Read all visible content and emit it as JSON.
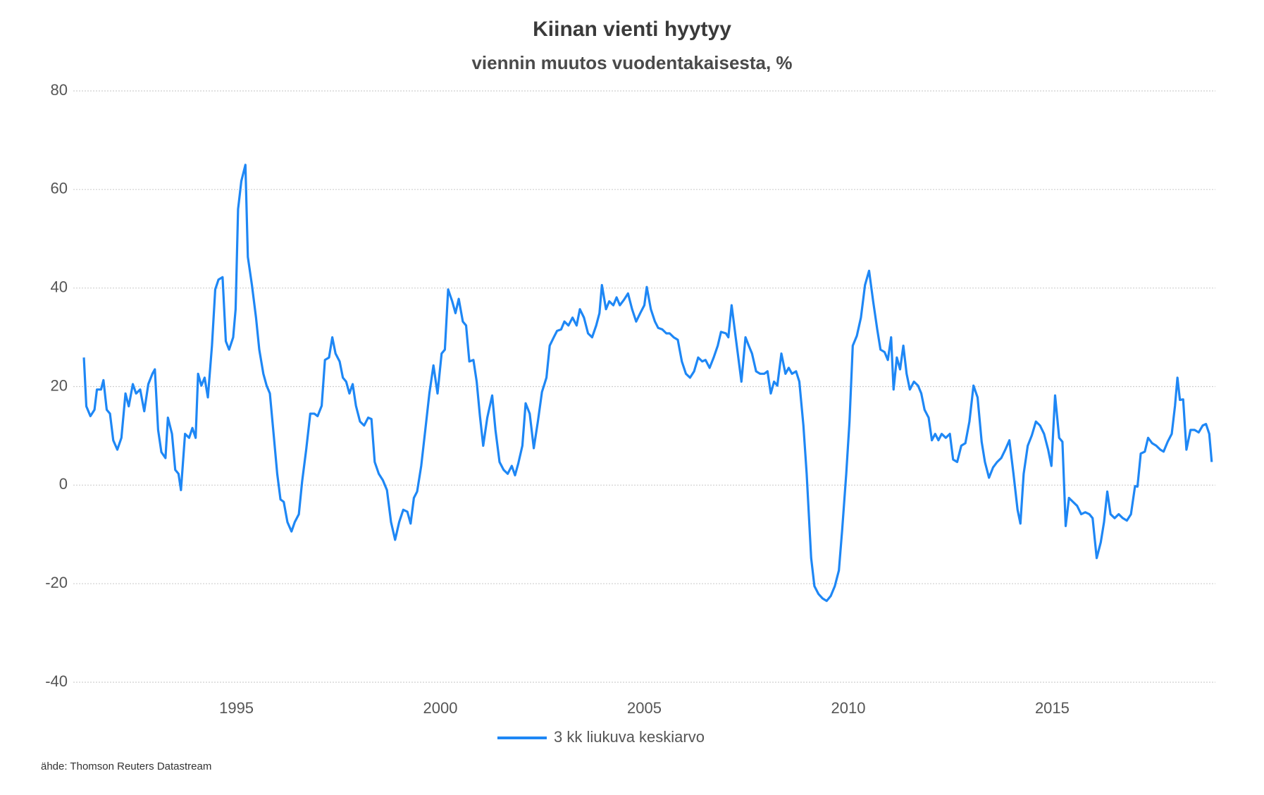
{
  "chart_data": {
    "type": "line",
    "title": "Kiinan vienti hyytyy",
    "subtitle": "viennin muutos vuodentakaisesta, %",
    "source": "ähde: Thomson Reuters Datastream",
    "xlim": [
      1991,
      2019
    ],
    "xticks": [
      1995,
      2000,
      2005,
      2010,
      2015
    ],
    "ylim": [
      -40,
      80
    ],
    "yticks": [
      -40,
      -20,
      0,
      20,
      40,
      60,
      80
    ],
    "grid": true,
    "legend": "bottom",
    "x": [
      1991.26,
      1991.32,
      1991.42,
      1991.52,
      1991.58,
      1991.68,
      1991.74,
      1991.82,
      1991.9,
      1991.98,
      1992.08,
      1992.18,
      1992.28,
      1992.36,
      1992.46,
      1992.54,
      1992.64,
      1992.74,
      1992.84,
      1992.94,
      1993.0,
      1993.08,
      1993.16,
      1993.26,
      1993.32,
      1993.42,
      1993.5,
      1993.58,
      1993.64,
      1993.74,
      1993.84,
      1993.92,
      1994.0,
      1994.06,
      1994.14,
      1994.22,
      1994.3,
      1994.4,
      1994.48,
      1994.56,
      1994.66,
      1994.74,
      1994.82,
      1994.92,
      1994.98,
      1995.04,
      1995.12,
      1995.22,
      1995.28,
      1995.38,
      1995.48,
      1995.56,
      1995.66,
      1995.74,
      1995.82,
      1995.92,
      1996.0,
      1996.08,
      1996.16,
      1996.25,
      1996.35,
      1996.43,
      1996.53,
      1996.61,
      1996.71,
      1996.81,
      1996.91,
      1996.99,
      1997.09,
      1997.17,
      1997.27,
      1997.35,
      1997.43,
      1997.53,
      1997.61,
      1997.69,
      1997.77,
      1997.85,
      1997.93,
      1998.03,
      1998.13,
      1998.23,
      1998.31,
      1998.39,
      1998.49,
      1998.59,
      1998.69,
      1998.79,
      1998.89,
      1998.99,
      1999.09,
      1999.19,
      1999.27,
      1999.35,
      1999.43,
      1999.53,
      1999.63,
      1999.73,
      1999.83,
      1999.93,
      2000.03,
      2000.11,
      2000.19,
      2000.29,
      2000.37,
      2000.45,
      2000.55,
      2000.63,
      2000.71,
      2000.81,
      2000.89,
      2000.97,
      2001.05,
      2001.15,
      2001.27,
      2001.35,
      2001.45,
      2001.55,
      2001.65,
      2001.75,
      2001.83,
      2001.91,
      2002.01,
      2002.09,
      2002.19,
      2002.29,
      2002.39,
      2002.49,
      2002.6,
      2002.68,
      2002.78,
      2002.86,
      2002.96,
      2003.04,
      2003.14,
      2003.24,
      2003.34,
      2003.42,
      2003.52,
      2003.62,
      2003.72,
      2003.82,
      2003.9,
      2003.96,
      2004.06,
      2004.14,
      2004.24,
      2004.32,
      2004.4,
      2004.5,
      2004.6,
      2004.7,
      2004.8,
      2004.9,
      2005.0,
      2005.06,
      2005.16,
      2005.26,
      2005.34,
      2005.44,
      2005.54,
      2005.62,
      2005.72,
      2005.82,
      2005.92,
      2006.02,
      2006.12,
      2006.22,
      2006.32,
      2006.42,
      2006.5,
      2006.6,
      2006.7,
      2006.8,
      2006.88,
      2007.0,
      2007.06,
      2007.14,
      2007.24,
      2007.38,
      2007.48,
      2007.56,
      2007.64,
      2007.74,
      2007.84,
      2007.94,
      2008.02,
      2008.1,
      2008.18,
      2008.26,
      2008.36,
      2008.46,
      2008.54,
      2008.62,
      2008.72,
      2008.8,
      2008.9,
      2008.98,
      2009.09,
      2009.17,
      2009.27,
      2009.37,
      2009.47,
      2009.57,
      2009.67,
      2009.77,
      2009.85,
      2009.95,
      2010.03,
      2010.11,
      2010.21,
      2010.31,
      2010.41,
      2010.51,
      2010.61,
      2010.71,
      2010.79,
      2010.89,
      2010.97,
      2011.05,
      2011.11,
      2011.19,
      2011.27,
      2011.35,
      2011.43,
      2011.51,
      2011.61,
      2011.71,
      2011.79,
      2011.87,
      2011.97,
      2012.05,
      2012.13,
      2012.21,
      2012.29,
      2012.39,
      2012.49,
      2012.57,
      2012.67,
      2012.77,
      2012.87,
      2012.97,
      2013.07,
      2013.17,
      2013.27,
      2013.35,
      2013.45,
      2013.55,
      2013.65,
      2013.75,
      2013.85,
      2013.95,
      2014.05,
      2014.15,
      2014.22,
      2014.3,
      2014.4,
      2014.5,
      2014.6,
      2014.7,
      2014.8,
      2014.9,
      2014.98,
      2015.07,
      2015.17,
      2015.25,
      2015.33,
      2015.41,
      2015.51,
      2015.61,
      2015.71,
      2015.81,
      2015.91,
      2015.99,
      2016.09,
      2016.19,
      2016.27,
      2016.35,
      2016.43,
      2016.53,
      2016.63,
      2016.73,
      2016.83,
      2016.93,
      2017.03,
      2017.09,
      2017.17,
      2017.27,
      2017.35,
      2017.45,
      2017.55,
      2017.65,
      2017.73,
      2017.83,
      2017.93,
      2018.01,
      2018.07,
      2018.13,
      2018.21,
      2018.29,
      2018.39,
      2018.49,
      2018.59,
      2018.69,
      2018.77,
      2018.85,
      2018.91
    ],
    "series": [
      {
        "name": "3 kk liukuva keskiarvo",
        "color": "#1e87f5",
        "values": [
          25.9,
          16,
          14,
          15.3,
          19.4,
          19.4,
          21.3,
          15.3,
          14.5,
          9.1,
          7.2,
          9.6,
          18.6,
          16,
          20.5,
          18.6,
          19.4,
          15,
          20.5,
          22.6,
          23.5,
          11.2,
          6.7,
          5.5,
          13.7,
          10.4,
          3.1,
          2.3,
          -1,
          10.4,
          9.6,
          11.6,
          9.6,
          22.6,
          20.2,
          21.8,
          17.8,
          28.3,
          39.7,
          41.7,
          42.2,
          29.2,
          27.5,
          30,
          35.7,
          56,
          61.7,
          65,
          46.3,
          40.6,
          34,
          27.5,
          22.6,
          20.2,
          18.6,
          9.6,
          2.3,
          -2.9,
          -3.4,
          -7.5,
          -9.4,
          -7.5,
          -5.9,
          0.7,
          7.2,
          14.5,
          14.5,
          14,
          16.1,
          25.4,
          25.9,
          30,
          26.7,
          25.1,
          21.8,
          21,
          18.6,
          20.5,
          16.1,
          12.9,
          12.1,
          13.7,
          13.4,
          4.7,
          2.3,
          1,
          -1,
          -7.5,
          -11.1,
          -7.5,
          -5,
          -5.4,
          -7.8,
          -2.6,
          -1.3,
          3.9,
          11.2,
          18.6,
          24.3,
          18.6,
          26.7,
          27.5,
          39.7,
          37.3,
          34.9,
          37.8,
          33.2,
          32.4,
          25.1,
          25.4,
          21,
          14,
          8,
          13.7,
          18.2,
          11.2,
          4.7,
          3.1,
          2.3,
          3.9,
          2,
          4.4,
          8,
          16.6,
          14.5,
          7.5,
          12.9,
          18.9,
          21.8,
          28.3,
          30,
          31.3,
          31.6,
          33.2,
          32.4,
          34,
          32.4,
          35.7,
          34,
          30.8,
          30,
          32.4,
          34.9,
          40.6,
          35.7,
          37.3,
          36.5,
          38.1,
          36.5,
          37.6,
          38.9,
          35.7,
          33.2,
          34.9,
          36.5,
          40.2,
          35.7,
          33.2,
          31.9,
          31.6,
          30.8,
          30.8,
          30,
          29.5,
          25.1,
          22.6,
          21.8,
          23.1,
          25.9,
          25.1,
          25.4,
          23.8,
          25.9,
          28.3,
          31.1,
          30.8,
          30,
          36.5,
          30,
          21,
          30,
          28.3,
          26.7,
          23.1,
          22.6,
          22.6,
          23.1,
          18.6,
          21,
          20.2,
          26.7,
          22.6,
          23.8,
          22.6,
          23.1,
          21,
          12.1,
          2.3,
          -14.8,
          -20.5,
          -22.1,
          -23,
          -23.5,
          -22.5,
          -20.5,
          -17.3,
          -9.1,
          2.3,
          12.9,
          28.3,
          30.3,
          34,
          40.6,
          43.5,
          37.3,
          31.6,
          27.5,
          27,
          25.4,
          30,
          19.4,
          25.9,
          23.5,
          28.3,
          22.6,
          19.4,
          21,
          20.2,
          18.6,
          15.3,
          13.7,
          9.1,
          10.4,
          9.1,
          10.4,
          9.6,
          10.4,
          5.2,
          4.7,
          8,
          8.5,
          12.9,
          20.2,
          17.8,
          8.8,
          4.7,
          1.5,
          3.6,
          4.7,
          5.5,
          7.2,
          9.1,
          2.3,
          -5,
          -7.8,
          2.3,
          8,
          10.1,
          12.9,
          12.1,
          10.4,
          7.2,
          3.9,
          18.2,
          9.6,
          8.8,
          -8.3,
          -2.6,
          -3.4,
          -4.2,
          -5.9,
          -5.5,
          -5.9,
          -6.7,
          -14.8,
          -11.6,
          -7.5,
          -1.3,
          -5.9,
          -6.7,
          -5.9,
          -6.7,
          -7.2,
          -5.9,
          -0.2,
          -0.3,
          6.4,
          6.8,
          9.6,
          8.5,
          8,
          7.2,
          6.8,
          8.8,
          10.4,
          16.1,
          21.8,
          17.3,
          17.4,
          7.2,
          11.2,
          11.2,
          10.7,
          12.1,
          12.4,
          10.4,
          4.7
        ]
      }
    ]
  }
}
